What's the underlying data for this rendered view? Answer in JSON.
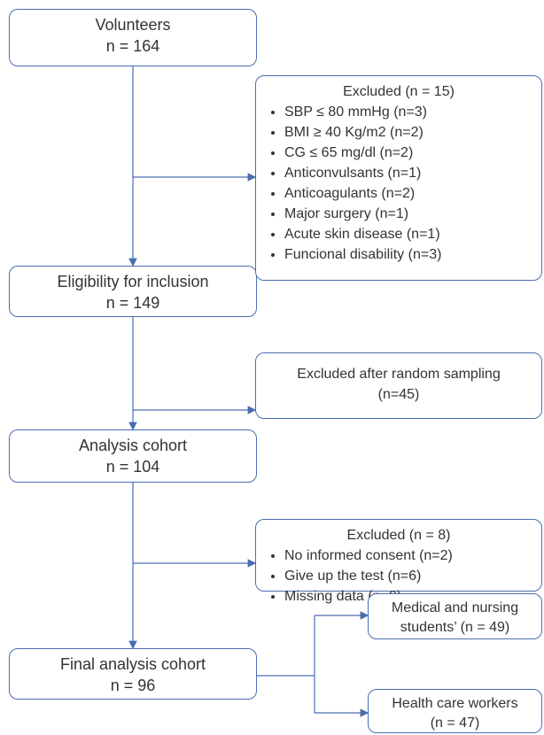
{
  "nodes": [
    {
      "label": "Volunteers",
      "count": "n = 164"
    },
    {
      "label": "Eligibility for inclusion",
      "count": "n = 149"
    },
    {
      "label": "Analysis cohort",
      "count": "n = 104"
    },
    {
      "label": "Final analysis cohort",
      "count": "n = 96"
    }
  ],
  "exclusions": [
    {
      "title": "Excluded (n = 15)",
      "items": [
        "SBP ≤ 80 mmHg (n=3)",
        "BMI ≥ 40 Kg/m2  (n=2)",
        "CG ≤ 65 mg/dl (n=2)",
        "Anticonvulsants (n=1)",
        "Anticoagulants (n=2)",
        "Major  surgery (n=1)",
        "Acute skin disease (n=1)",
        "Funcional disability (n=3)"
      ]
    },
    {
      "title": "Excluded  after random sampling",
      "count": "(n=45)"
    },
    {
      "title": "Excluded (n = 8)",
      "items": [
        "No informed consent (n=2)",
        "Give up the test (n=6)",
        "Missing data (n=0)"
      ]
    }
  ],
  "outcomes": [
    {
      "lines": [
        "Medical and nursing",
        "students’ (n = 49)"
      ]
    },
    {
      "lines": [
        "Health care workers",
        "(n = 47)"
      ]
    }
  ]
}
